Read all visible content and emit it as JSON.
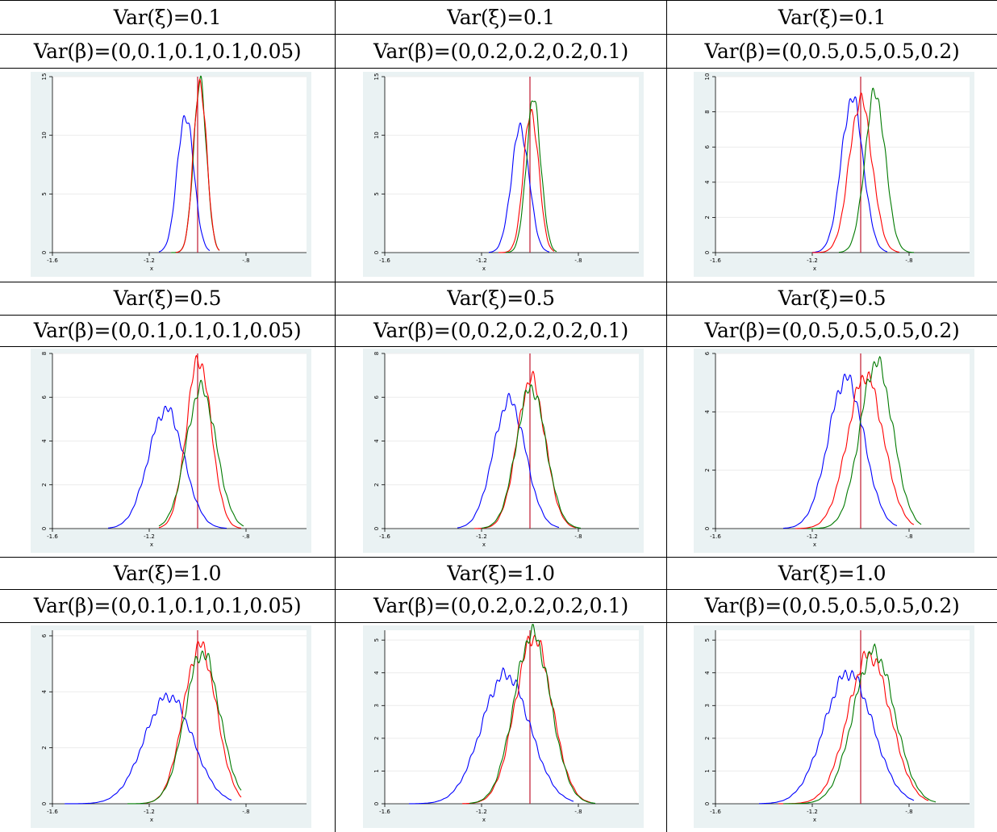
{
  "colors": {
    "blue": "#0000ff",
    "red": "#ff0000",
    "green": "#007a00",
    "refline": "#c0182e"
  },
  "headers": {
    "rows": [
      {
        "xi": [
          "Var(ξ)=0.1",
          "Var(ξ)=0.1",
          "Var(ξ)=0.1"
        ]
      },
      {
        "xi": [
          "Var(ξ)=0.5",
          "Var(ξ)=0.5",
          "Var(ξ)=0.5"
        ]
      },
      {
        "xi": [
          "Var(ξ)=1.0",
          "Var(ξ)=1.0",
          "Var(ξ)=1.0"
        ]
      }
    ],
    "beta": [
      "Var(β)=(0,0.1,0.1,0.1,0.05)",
      "Var(β)=(0,0.2,0.2,0.2,0.1)",
      "Var(β)=(0,0.5,0.5,0.5,0.2)"
    ]
  },
  "chart_data": [
    {
      "type": "line",
      "xlabel": "x",
      "ylabel": "",
      "xlim": [
        -1.6,
        -0.55
      ],
      "ylim": [
        0,
        15
      ],
      "xticks": [
        "-1.6",
        "-1.2",
        "-.8"
      ],
      "yticks": [
        "0",
        "5",
        "10",
        "15"
      ],
      "ytick_values": [
        0,
        5,
        10,
        15
      ],
      "xtick_values": [
        -1.6,
        -1.2,
        -0.8
      ],
      "refline_x": -1.0,
      "series": [
        {
          "color": "blue",
          "mean": -1.05,
          "sd": 0.034,
          "peak": 11.8,
          "x": [
            -1.16,
            -0.95
          ]
        },
        {
          "color": "green",
          "mean": -0.99,
          "sd": 0.027,
          "peak": 14.4,
          "x": [
            -1.11,
            -0.91
          ]
        },
        {
          "color": "red",
          "mean": -0.99,
          "sd": 0.027,
          "peak": 14.6,
          "x": [
            -1.09,
            -0.91
          ]
        }
      ]
    },
    {
      "type": "line",
      "xlabel": "x",
      "ylabel": "",
      "xlim": [
        -1.6,
        -0.55
      ],
      "ylim": [
        0,
        15
      ],
      "xticks": [
        "-1.6",
        "-1.2",
        "-.8"
      ],
      "yticks": [
        "0",
        "5",
        "10",
        "15"
      ],
      "ytick_values": [
        0,
        5,
        10,
        15
      ],
      "xtick_values": [
        -1.6,
        -1.2,
        -0.8
      ],
      "refline_x": -1.0,
      "series": [
        {
          "color": "blue",
          "mean": -1.04,
          "sd": 0.037,
          "peak": 10.6,
          "x": [
            -1.17,
            -0.92
          ]
        },
        {
          "color": "red",
          "mean": -0.995,
          "sd": 0.031,
          "peak": 12.1,
          "x": [
            -1.13,
            -0.9
          ]
        },
        {
          "color": "green",
          "mean": -0.985,
          "sd": 0.03,
          "peak": 13.0,
          "x": [
            -1.1,
            -0.89
          ]
        }
      ]
    },
    {
      "type": "line",
      "xlabel": "x",
      "ylabel": "",
      "xlim": [
        -1.6,
        -0.55
      ],
      "ylim": [
        0,
        10
      ],
      "xticks": [
        "-1.6",
        "-1.2",
        "-.8"
      ],
      "yticks": [
        "0",
        "2",
        "4",
        "6",
        "8",
        "10"
      ],
      "ytick_values": [
        0,
        2,
        4,
        6,
        8,
        10
      ],
      "xtick_values": [
        -1.6,
        -1.2,
        -0.8
      ],
      "refline_x": -1.0,
      "series": [
        {
          "color": "blue",
          "mean": -1.035,
          "sd": 0.045,
          "peak": 8.8,
          "x": [
            -1.2,
            -0.89
          ]
        },
        {
          "color": "red",
          "mean": -1.0,
          "sd": 0.047,
          "peak": 8.7,
          "x": [
            -1.2,
            -0.84
          ]
        },
        {
          "color": "green",
          "mean": -0.94,
          "sd": 0.042,
          "peak": 9.1,
          "x": [
            -1.09,
            -0.78
          ]
        }
      ]
    },
    {
      "type": "line",
      "xlabel": "x",
      "ylabel": "",
      "xlim": [
        -1.6,
        -0.55
      ],
      "ylim": [
        0,
        8
      ],
      "xticks": [
        "-1.6",
        "-1.2",
        "-.8"
      ],
      "yticks": [
        "0",
        "2",
        "4",
        "6",
        "8"
      ],
      "ytick_values": [
        0,
        2,
        4,
        6,
        8
      ],
      "xtick_values": [
        -1.6,
        -1.2,
        -0.8
      ],
      "refline_x": -1.0,
      "series": [
        {
          "color": "blue",
          "mean": -1.13,
          "sd": 0.073,
          "peak": 5.45,
          "x": [
            -1.37,
            -0.88
          ]
        },
        {
          "color": "red",
          "mean": -0.995,
          "sd": 0.051,
          "peak": 7.75,
          "x": [
            -1.16,
            -0.82
          ]
        },
        {
          "color": "green",
          "mean": -0.985,
          "sd": 0.062,
          "peak": 6.4,
          "x": [
            -1.16,
            -0.81
          ]
        }
      ]
    },
    {
      "type": "line",
      "xlabel": "x",
      "ylabel": "",
      "xlim": [
        -1.6,
        -0.55
      ],
      "ylim": [
        0,
        8
      ],
      "xticks": [
        "-1.6",
        "-1.2",
        "-.8"
      ],
      "yticks": [
        "0",
        "2",
        "4",
        "6",
        "8"
      ],
      "ytick_values": [
        0,
        2,
        4,
        6,
        8
      ],
      "xtick_values": [
        -1.6,
        -1.2,
        -0.8
      ],
      "refline_x": -1.0,
      "series": [
        {
          "color": "blue",
          "mean": -1.085,
          "sd": 0.067,
          "peak": 5.85,
          "x": [
            -1.3,
            -0.88
          ]
        },
        {
          "color": "red",
          "mean": -0.995,
          "sd": 0.058,
          "peak": 6.85,
          "x": [
            -1.23,
            -0.81
          ]
        },
        {
          "color": "green",
          "mean": -0.995,
          "sd": 0.061,
          "peak": 6.45,
          "x": [
            -1.2,
            -0.79
          ]
        }
      ]
    },
    {
      "type": "line",
      "xlabel": "x",
      "ylabel": "",
      "xlim": [
        -1.6,
        -0.55
      ],
      "ylim": [
        0,
        6
      ],
      "xticks": [
        "-1.6",
        "-1.2",
        "-.8"
      ],
      "yticks": [
        "0",
        "2",
        "4",
        "6"
      ],
      "ytick_values": [
        0,
        2,
        4,
        6
      ],
      "xtick_values": [
        -1.6,
        -1.2,
        -0.8
      ],
      "refline_x": -1.0,
      "series": [
        {
          "color": "blue",
          "mean": -1.06,
          "sd": 0.074,
          "peak": 5.15,
          "x": [
            -1.32,
            -0.85
          ]
        },
        {
          "color": "red",
          "mean": -0.98,
          "sd": 0.074,
          "peak": 5.25,
          "x": [
            -1.27,
            -0.78
          ]
        },
        {
          "color": "green",
          "mean": -0.935,
          "sd": 0.068,
          "peak": 5.7,
          "x": [
            -1.22,
            -0.75
          ]
        }
      ]
    },
    {
      "type": "line",
      "xlabel": "x",
      "ylabel": "",
      "xlim": [
        -1.6,
        -0.55
      ],
      "ylim": [
        0,
        6.2
      ],
      "xticks": [
        "-1.6",
        "-1.2",
        "-.8"
      ],
      "yticks": [
        "0",
        "2",
        "4",
        "6"
      ],
      "ytick_values": [
        0,
        2,
        4,
        6
      ],
      "xtick_values": [
        -1.6,
        -1.2,
        -0.8
      ],
      "refline_x": -1.0,
      "series": [
        {
          "color": "blue",
          "mean": -1.12,
          "sd": 0.1,
          "peak": 3.85,
          "x": [
            -1.55,
            -0.86
          ]
        },
        {
          "color": "red",
          "mean": -0.99,
          "sd": 0.068,
          "peak": 5.65,
          "x": [
            -1.22,
            -0.82
          ]
        },
        {
          "color": "green",
          "mean": -0.98,
          "sd": 0.072,
          "peak": 5.4,
          "x": [
            -1.29,
            -0.82
          ]
        }
      ]
    },
    {
      "type": "line",
      "xlabel": "x",
      "ylabel": "",
      "xlim": [
        -1.6,
        -0.55
      ],
      "ylim": [
        0,
        5.3
      ],
      "xticks": [
        "-1.6",
        "-1.2",
        "-.8"
      ],
      "yticks": [
        "0",
        "1",
        "2",
        "3",
        "4",
        "5"
      ],
      "ytick_values": [
        0,
        1,
        2,
        3,
        4,
        5
      ],
      "xtick_values": [
        -1.6,
        -1.2,
        -0.8
      ],
      "refline_x": -1.0,
      "series": [
        {
          "color": "blue",
          "mean": -1.1,
          "sd": 0.1,
          "peak": 3.95,
          "x": [
            -1.5,
            -0.82
          ]
        },
        {
          "color": "red",
          "mean": -0.985,
          "sd": 0.076,
          "peak": 5.1,
          "x": [
            -1.28,
            -0.75
          ]
        },
        {
          "color": "green",
          "mean": -0.99,
          "sd": 0.076,
          "peak": 5.2,
          "x": [
            -1.25,
            -0.73
          ]
        }
      ]
    },
    {
      "type": "line",
      "xlabel": "x",
      "ylabel": "",
      "xlim": [
        -1.6,
        -0.55
      ],
      "ylim": [
        0,
        5.3
      ],
      "xticks": [
        "-1.6",
        "-1.2",
        "-.8"
      ],
      "yticks": [
        "0",
        "1",
        "2",
        "3",
        "4",
        "5"
      ],
      "ytick_values": [
        0,
        1,
        2,
        3,
        4,
        5
      ],
      "xtick_values": [
        -1.6,
        -1.2,
        -0.8
      ],
      "refline_x": -1.0,
      "series": [
        {
          "color": "blue",
          "mean": -1.05,
          "sd": 0.1,
          "peak": 4.0,
          "x": [
            -1.42,
            -0.78
          ]
        },
        {
          "color": "red",
          "mean": -0.965,
          "sd": 0.088,
          "peak": 4.55,
          "x": [
            -1.34,
            -0.72
          ]
        },
        {
          "color": "green",
          "mean": -0.945,
          "sd": 0.085,
          "peak": 4.65,
          "x": [
            -1.32,
            -0.69
          ]
        }
      ]
    }
  ]
}
